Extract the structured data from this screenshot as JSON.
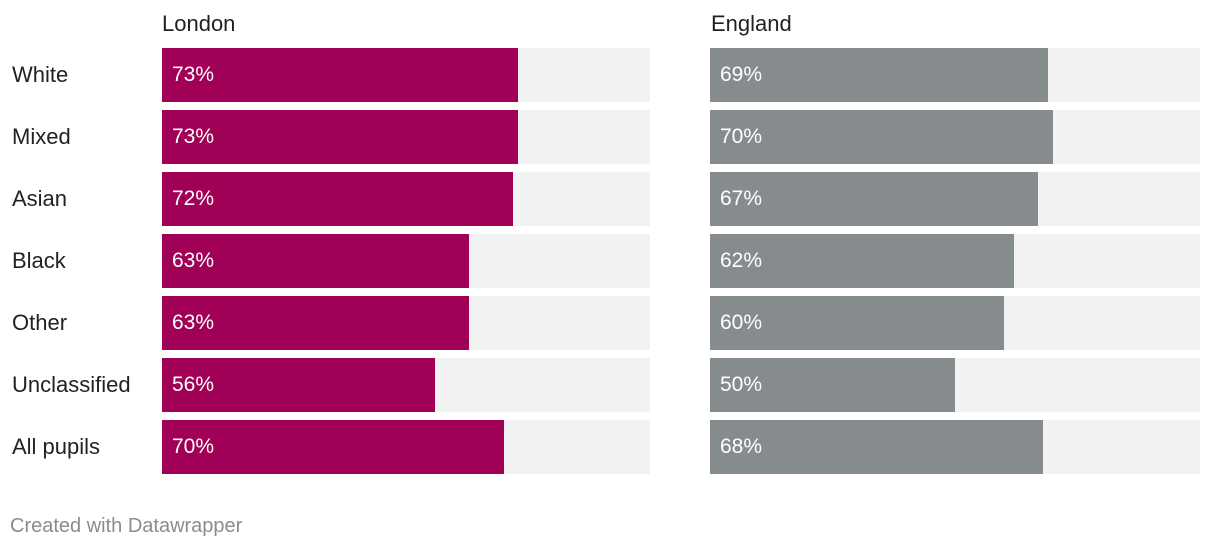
{
  "chart_data": {
    "type": "bar",
    "orientation": "horizontal",
    "categories": [
      "White",
      "Mixed",
      "Asian",
      "Black",
      "Other",
      "Unclassified",
      "All pupils"
    ],
    "series": [
      {
        "name": "London",
        "values": [
          73,
          73,
          72,
          63,
          63,
          56,
          70
        ],
        "color": "#a00055"
      },
      {
        "name": "England",
        "values": [
          69,
          70,
          67,
          62,
          60,
          50,
          68
        ],
        "color": "#868b8e"
      }
    ],
    "value_suffix": "%",
    "xlim": [
      0,
      100
    ],
    "track_color": "#f2f2f2",
    "grid": false,
    "legend": "none"
  },
  "credit": "Created with Datawrapper"
}
